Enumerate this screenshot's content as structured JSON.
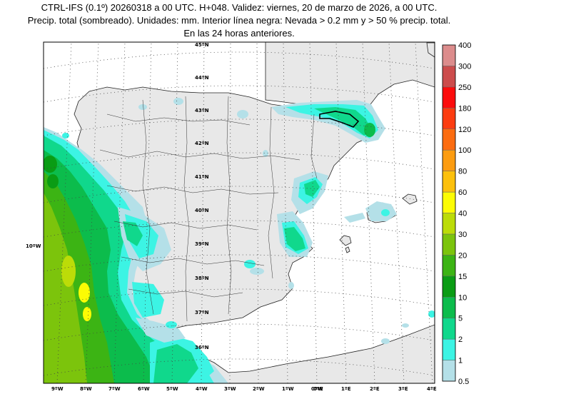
{
  "header": {
    "line1": "CTRL-IFS (0.1º) 20260318 a 00 UTC. H+048. Validez: viernes, 20 de marzo de 2026, a 00 UTC.",
    "line2": "Precip. total (sombreado). Unidades: mm. Interior línea negra: Nevada > 0.2 mm y > 50 % precip. total.",
    "line3": "En las 24 horas anteriores."
  },
  "map": {
    "lat_labels": [
      "45ºN",
      "44ºN",
      "43ºN",
      "42ºN",
      "41ºN",
      "40ºN",
      "39ºN",
      "38ºN",
      "37ºN",
      "36ºN"
    ],
    "lon_labels": [
      "9ºW",
      "8ºW",
      "7ºW",
      "6ºW",
      "5ºW",
      "4ºW",
      "3ºW",
      "2ºW",
      "1ºW",
      "0ºW",
      "0ºE",
      "1ºE",
      "2ºE",
      "3ºE",
      "4ºE"
    ],
    "side_label": "10ºW"
  },
  "colorbar": {
    "levels": [
      "0.5",
      "1",
      "2",
      "5",
      "10",
      "15",
      "20",
      "30",
      "40",
      "60",
      "80",
      "100",
      "120",
      "180",
      "250",
      "300",
      "400"
    ],
    "colors": [
      "#b4e0e8",
      "#3cf4e4",
      "#10d88c",
      "#0cbc4c",
      "#0a9c14",
      "#3cb414",
      "#7cc40c",
      "#bcdc08",
      "#fcfc04",
      "#fcc00c",
      "#fc9c10",
      "#fc6c10",
      "#fc3c10",
      "#fc0c0c",
      "#cc4c4c",
      "#dc8c8c",
      "#f0c4c4"
    ]
  }
}
